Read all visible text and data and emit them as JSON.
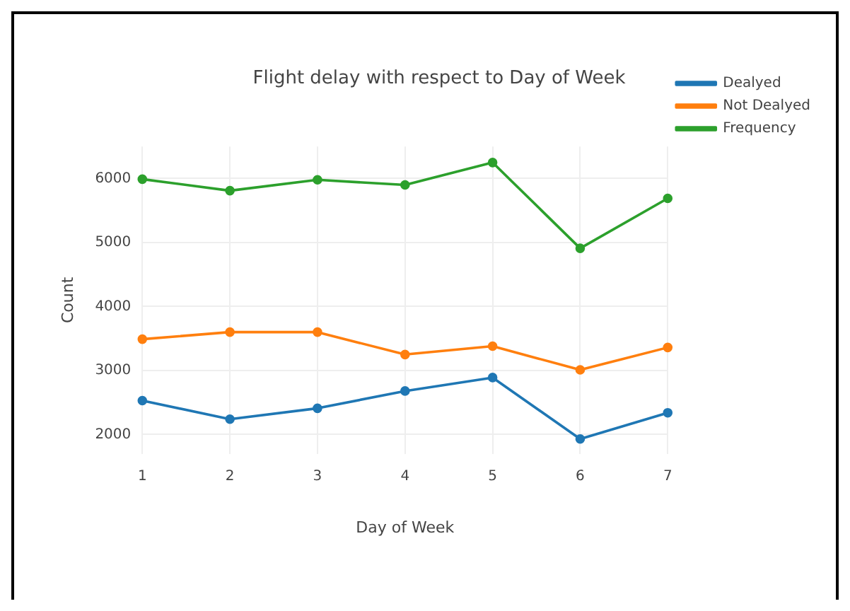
{
  "chart_data": {
    "type": "line",
    "title": "Flight delay with respect to Day of Week",
    "xlabel": "Day of Week",
    "ylabel": "Count",
    "categories": [
      "1",
      "2",
      "3",
      "4",
      "5",
      "6",
      "7"
    ],
    "series": [
      {
        "name": "Dealyed",
        "color": "#1f77b4",
        "values": [
          2530,
          2240,
          2410,
          2680,
          2890,
          1930,
          2340
        ]
      },
      {
        "name": "Not Dealyed",
        "color": "#ff7f0e",
        "values": [
          3490,
          3600,
          3600,
          3250,
          3380,
          3010,
          3360
        ]
      },
      {
        "name": "Frequency",
        "color": "#2ca02c",
        "values": [
          5990,
          5810,
          5980,
          5900,
          6250,
          4910,
          5690
        ]
      }
    ],
    "ylim": [
      1700,
      6500
    ],
    "yticks": [
      2000,
      3000,
      4000,
      5000,
      6000
    ],
    "grid": true,
    "legend": "top right",
    "marker": "circle",
    "line_style": "solid"
  }
}
